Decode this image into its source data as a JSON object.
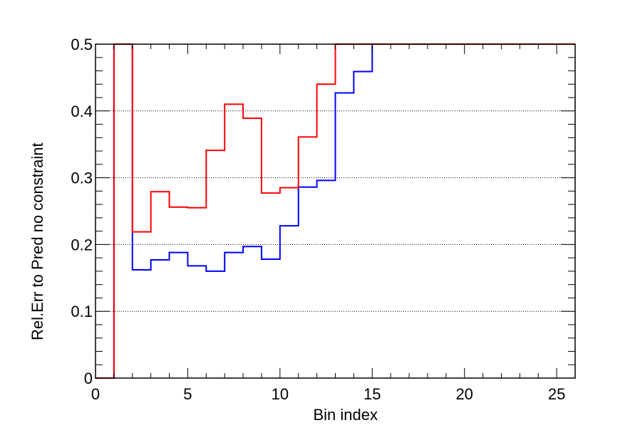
{
  "chart_data": {
    "type": "line",
    "style": "step-histogram",
    "xlabel": "Bin index",
    "ylabel": "Rel.Err to Pred no constraint",
    "xlim": [
      0,
      26
    ],
    "ylim": [
      0,
      0.5
    ],
    "xticks": [
      "0",
      "5",
      "10",
      "15",
      "20",
      "25"
    ],
    "yticks": [
      "0",
      "0.1",
      "0.2",
      "0.3",
      "0.4",
      "0.5"
    ],
    "grid": "horizontal dotted at y-ticks",
    "series": [
      {
        "color": "#0000ff",
        "bin_edges": [
          0,
          1,
          2,
          3,
          4,
          5,
          6,
          7,
          8,
          9,
          10,
          11,
          12,
          13,
          14,
          15,
          16,
          17,
          18,
          19,
          20,
          21,
          22,
          23,
          24,
          25,
          26
        ],
        "values": [
          0,
          0.5,
          0.162,
          0.177,
          0.188,
          0.168,
          0.16,
          0.188,
          0.197,
          0.178,
          0.228,
          0.286,
          0.296,
          0.427,
          0.459,
          0.5,
          0.5,
          0.5,
          0.5,
          0.5,
          0.5,
          0.5,
          0.5,
          0.5,
          0.5,
          0.5
        ]
      },
      {
        "color": "#ff0000",
        "bin_edges": [
          0,
          1,
          2,
          3,
          4,
          5,
          6,
          7,
          8,
          9,
          10,
          11,
          12,
          13,
          14,
          15,
          16,
          17,
          18,
          19,
          20,
          21,
          22,
          23,
          24,
          25,
          26
        ],
        "values": [
          0,
          0.5,
          0.219,
          0.279,
          0.256,
          0.255,
          0.341,
          0.41,
          0.389,
          0.277,
          0.285,
          0.361,
          0.44,
          0.5,
          0.5,
          0.5,
          0.5,
          0.5,
          0.5,
          0.5,
          0.5,
          0.5,
          0.5,
          0.5,
          0.5,
          0.5
        ]
      }
    ]
  }
}
